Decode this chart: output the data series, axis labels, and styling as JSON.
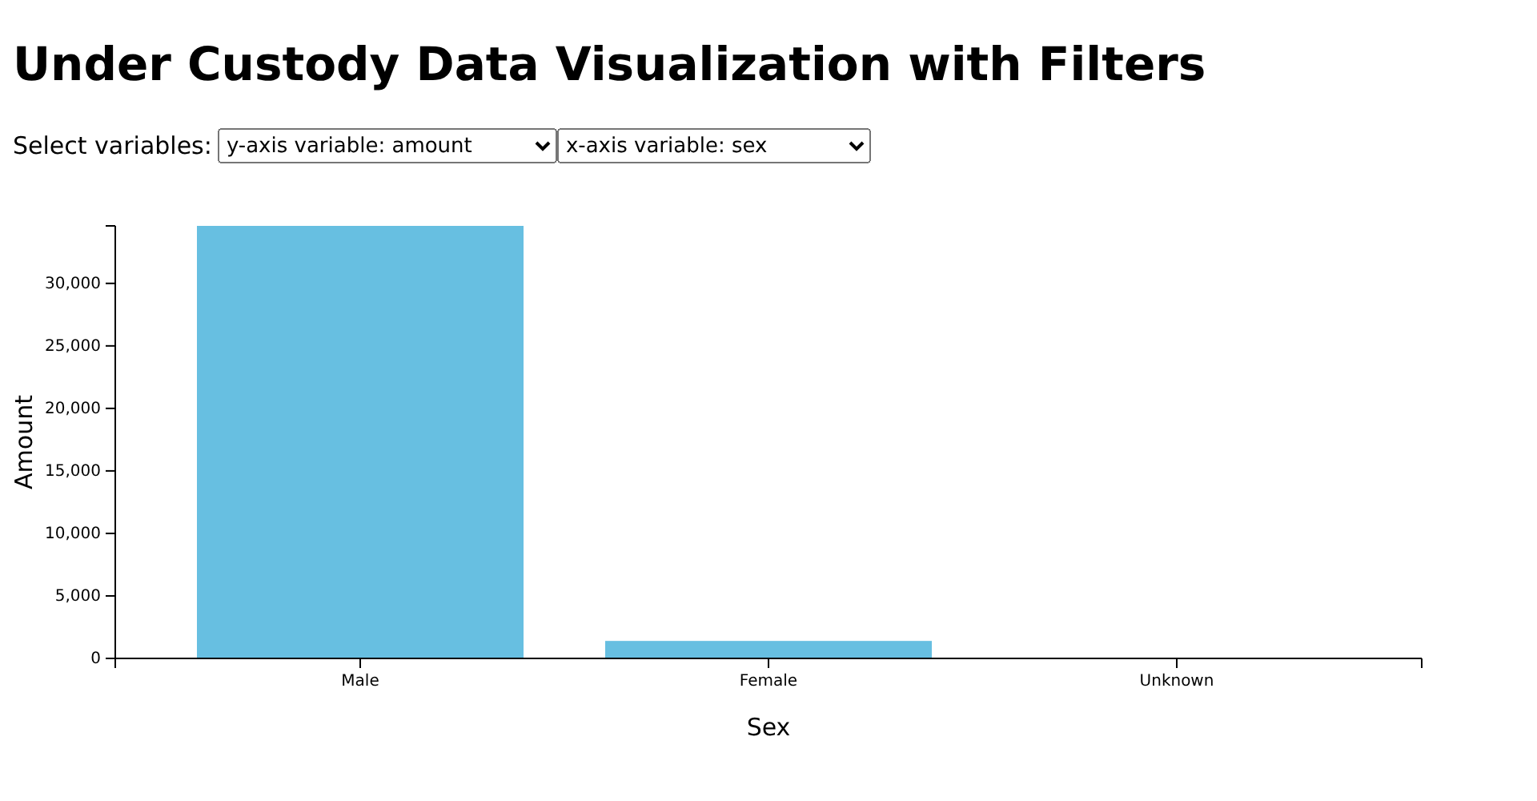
{
  "chart_data": {
    "type": "bar",
    "title": "Under Custody Data Visualization with Filters",
    "annotations": [
      "Select variables:",
      "y-axis variable: amount",
      "x-axis variable: sex"
    ],
    "categories": [
      "Male",
      "Female",
      "Unknown"
    ],
    "values": [
      34600,
      1400,
      0
    ],
    "color": "#67bfe1",
    "xlabel": "Sex",
    "ylabel": "Amount",
    "ylim": [
      0,
      34600
    ],
    "yticks": [
      {
        "value": 0,
        "label": "0"
      },
      {
        "value": 5000,
        "label": "5,000"
      },
      {
        "value": 10000,
        "label": "10,000"
      },
      {
        "value": 15000,
        "label": "15,000"
      },
      {
        "value": 20000,
        "label": "20,000"
      },
      {
        "value": 25000,
        "label": "25,000"
      },
      {
        "value": 30000,
        "label": "30,000"
      }
    ]
  }
}
